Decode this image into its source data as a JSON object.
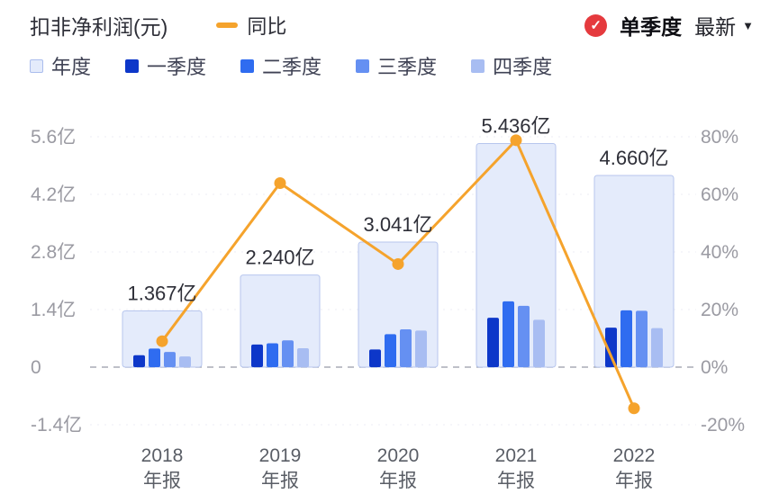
{
  "header": {
    "title": "扣非净利润(元)",
    "yoy_legend": "同比",
    "mode_label": "单季度",
    "latest_label": "最新"
  },
  "legend": {
    "items": [
      {
        "id": "annual",
        "label": "年度",
        "color": "#e4ebfb",
        "border": "#aabded"
      },
      {
        "id": "q1",
        "label": "一季度",
        "color": "#0d37c9"
      },
      {
        "id": "q2",
        "label": "二季度",
        "color": "#2f6cf0"
      },
      {
        "id": "q3",
        "label": "三季度",
        "color": "#6590f2"
      },
      {
        "id": "q4",
        "label": "四季度",
        "color": "#a8bdf2"
      }
    ]
  },
  "chart_data": {
    "type": "bar",
    "title": "扣非净利润(元)",
    "legend_position": "top",
    "grid": true,
    "years": [
      "2018",
      "2019",
      "2020",
      "2021",
      "2022"
    ],
    "period_label": "年报",
    "annual": {
      "name": "年度",
      "unit": "亿",
      "values": [
        1.367,
        2.24,
        3.041,
        5.436,
        4.66
      ],
      "labels": [
        "1.367亿",
        "2.240亿",
        "3.041亿",
        "5.436亿",
        "4.660亿"
      ],
      "fill": "#e4ebfb",
      "border": "#b7c6ee"
    },
    "series": [
      {
        "name": "一季度",
        "color": "#0d37c9",
        "values": [
          0.29,
          0.55,
          0.43,
          1.2,
          0.96
        ]
      },
      {
        "name": "二季度",
        "color": "#2f6cf0",
        "values": [
          0.45,
          0.58,
          0.8,
          1.6,
          1.38
        ]
      },
      {
        "name": "三季度",
        "color": "#6590f2",
        "values": [
          0.37,
          0.65,
          0.92,
          1.49,
          1.37
        ]
      },
      {
        "name": "四季度",
        "color": "#a8bdf2",
        "values": [
          0.26,
          0.46,
          0.89,
          1.15,
          0.95
        ]
      }
    ],
    "yoy_line": {
      "name": "同比",
      "color": "#f5a32c",
      "values_pct": [
        9,
        63.9,
        35.8,
        78.8,
        -14.3
      ]
    },
    "left_axis": {
      "unit": "亿",
      "tick_values": [
        5.6,
        4.2,
        2.8,
        1.4,
        0,
        -1.4
      ],
      "tick_labels": [
        "5.6亿",
        "4.2亿",
        "2.8亿",
        "1.4亿",
        "0",
        "-1.4亿"
      ],
      "min": -1.4,
      "max": 5.6
    },
    "right_axis": {
      "unit": "%",
      "tick_values": [
        80,
        60,
        40,
        20,
        0,
        -20
      ],
      "tick_labels": [
        "80%",
        "60%",
        "40%",
        "20%",
        "0%",
        "-20%"
      ],
      "min": -20,
      "max": 80
    }
  },
  "colors": {
    "accent_orange": "#f5a32c",
    "badge_red": "#e53a3e",
    "axis_text": "#9a9aa2",
    "xlabel_text": "#5a5e66",
    "data_label": "#2e2f38",
    "zero_line": "#a8acb5",
    "grid_line": "#eceef5"
  }
}
